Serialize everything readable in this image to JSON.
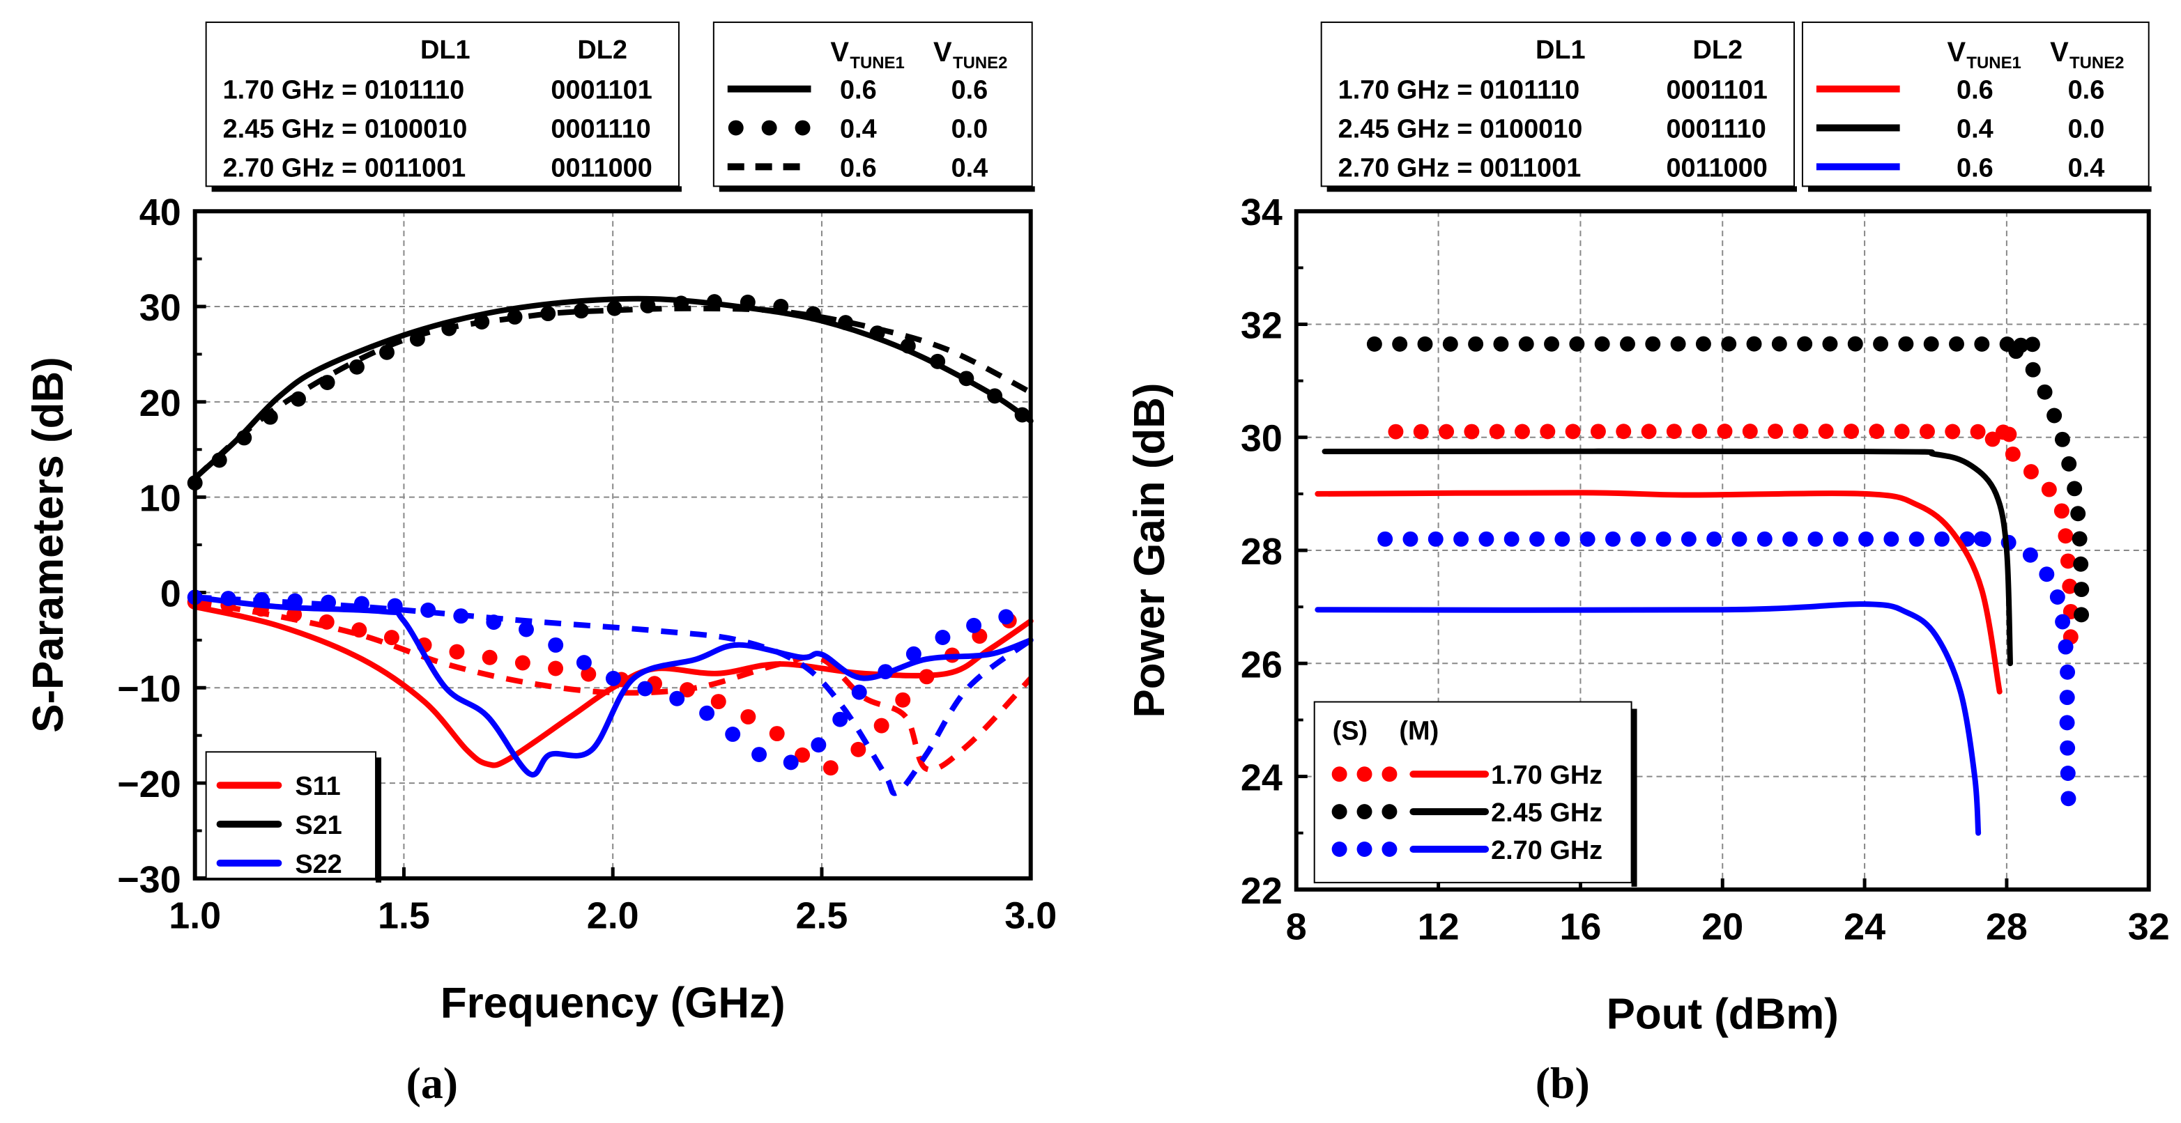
{
  "colors": {
    "S11": "#ff0000",
    "S21": "#000000",
    "S22": "#0000ff",
    "f170": "#ff0000",
    "f245": "#000000",
    "f270": "#0000ff",
    "grid": "#888888"
  },
  "chart_data": [
    {
      "type": "line",
      "caption": "(a)",
      "xlabel": "Frequency (GHz)",
      "ylabel": "S-Parameters (dB)",
      "xlim": [
        1.0,
        3.0
      ],
      "ylim": [
        -30,
        40
      ],
      "xticks": [
        1.0,
        1.5,
        2.0,
        2.5,
        3.0
      ],
      "xtick_labels": [
        "1.0",
        "1.5",
        "2.0",
        "2.5",
        "3.0"
      ],
      "yticks": [
        40,
        30,
        20,
        10,
        0,
        -10,
        -20,
        -30
      ],
      "ytick_labels": [
        "40",
        "30",
        "20",
        "10",
        "0",
        "−10",
        "−20",
        "−30"
      ],
      "grid": true,
      "legend": {
        "placement": "bottom-left",
        "entries": [
          "S11",
          "S21",
          "S22"
        ]
      },
      "state_table": {
        "headers": [
          "",
          "DL1",
          "DL2"
        ],
        "rows": [
          [
            "1.70 GHz = 0101110",
            "0001101"
          ],
          [
            "2.45 GHz = 0100010",
            "0001110"
          ],
          [
            "2.70 GHz = 0011001",
            "0011000"
          ]
        ]
      },
      "vtune_table": {
        "headers": [
          "V",
          "TUNE1",
          "V",
          "TUNE2"
        ],
        "rows": [
          {
            "style": "solid",
            "v1": "0.6",
            "v2": "0.6"
          },
          {
            "style": "dotted",
            "v1": "0.4",
            "v2": "0.0"
          },
          {
            "style": "dashed",
            "v1": "0.6",
            "v2": "0.4"
          }
        ]
      },
      "series": [
        {
          "name": "S21",
          "style": "solid",
          "color": "S21",
          "x": [
            1.0,
            1.1,
            1.2,
            1.3,
            1.5,
            1.7,
            1.9,
            2.1,
            2.3,
            2.5,
            2.7,
            2.9,
            3.0
          ],
          "y": [
            12,
            16,
            20.5,
            23.5,
            27,
            29.3,
            30.5,
            30.8,
            30,
            28.5,
            25.5,
            21,
            18
          ]
        },
        {
          "name": "S21",
          "style": "dotted",
          "color": "S21",
          "x": [
            1.0,
            1.2,
            1.5,
            1.7,
            2.0,
            2.3,
            2.5,
            2.7,
            2.9,
            3.0
          ],
          "y": [
            11.5,
            19,
            26,
            28.5,
            29.8,
            30.5,
            29,
            26,
            21,
            18
          ]
        },
        {
          "name": "S21",
          "style": "dashed",
          "color": "S21",
          "x": [
            1.0,
            1.2,
            1.5,
            1.8,
            2.0,
            2.2,
            2.4,
            2.6,
            2.8,
            3.0
          ],
          "y": [
            12,
            19.5,
            26.5,
            29,
            29.6,
            29.8,
            29.5,
            28,
            25.5,
            21
          ]
        },
        {
          "name": "S11",
          "style": "solid",
          "color": "S11",
          "x": [
            1.0,
            1.2,
            1.4,
            1.55,
            1.65,
            1.7,
            1.75,
            1.9,
            2.0,
            2.1,
            2.25,
            2.4,
            2.6,
            2.8,
            2.9,
            3.0
          ],
          "y": [
            -1.5,
            -3.5,
            -7,
            -11.5,
            -16.5,
            -18,
            -17.5,
            -13,
            -10,
            -8,
            -8.5,
            -7.5,
            -8.5,
            -8.5,
            -6,
            -3
          ]
        },
        {
          "name": "S11",
          "style": "dotted",
          "color": "S11",
          "x": [
            1.0,
            1.2,
            1.4,
            1.6,
            1.8,
            2.0,
            2.2,
            2.4,
            2.5,
            2.6,
            2.7,
            2.8,
            2.9,
            3.0
          ],
          "y": [
            -1,
            -2,
            -4,
            -6,
            -7.5,
            -9,
            -10.5,
            -15,
            -18.5,
            -16,
            -11,
            -7,
            -4,
            -2
          ]
        },
        {
          "name": "S11",
          "style": "dashed",
          "color": "S11",
          "x": [
            1.0,
            1.2,
            1.4,
            1.6,
            1.8,
            2.0,
            2.2,
            2.4,
            2.5,
            2.6,
            2.7,
            2.75,
            2.85,
            3.0
          ],
          "y": [
            -1,
            -2.5,
            -4.5,
            -7.5,
            -9.5,
            -10.5,
            -10,
            -7.5,
            -7,
            -11,
            -13,
            -18.5,
            -16,
            -9
          ]
        },
        {
          "name": "S22",
          "style": "solid",
          "color": "S22",
          "x": [
            1.0,
            1.2,
            1.45,
            1.5,
            1.6,
            1.7,
            1.8,
            1.85,
            1.95,
            2.05,
            2.2,
            2.3,
            2.45,
            2.5,
            2.6,
            2.75,
            2.9,
            3.0
          ],
          "y": [
            -0.5,
            -1.5,
            -2,
            -3,
            -10,
            -13,
            -19,
            -17,
            -16.5,
            -9,
            -7,
            -5.5,
            -6.8,
            -6.5,
            -9,
            -7,
            -6.5,
            -5
          ]
        },
        {
          "name": "S22",
          "style": "dotted",
          "color": "S22",
          "x": [
            1.0,
            1.3,
            1.5,
            1.7,
            1.8,
            1.9,
            2.0,
            2.2,
            2.35,
            2.45,
            2.55,
            2.6,
            2.7,
            2.8,
            2.9,
            3.0
          ],
          "y": [
            -0.5,
            -1,
            -1.5,
            -3,
            -4,
            -6.5,
            -9,
            -12,
            -17,
            -17.5,
            -13,
            -10,
            -7,
            -4.5,
            -3,
            -2
          ]
        },
        {
          "name": "S22",
          "style": "dashed",
          "color": "S22",
          "x": [
            1.0,
            1.4,
            1.8,
            2.1,
            2.3,
            2.45,
            2.55,
            2.65,
            2.68,
            2.75,
            2.85,
            3.0
          ],
          "y": [
            -0.5,
            -1.5,
            -3,
            -4,
            -5,
            -7.5,
            -12,
            -19,
            -21,
            -17,
            -10,
            -5
          ]
        }
      ]
    },
    {
      "type": "line",
      "caption": "(b)",
      "xlabel": "Pout (dBm)",
      "ylabel": "Power Gain (dB)",
      "xlim": [
        8,
        32
      ],
      "ylim": [
        22,
        34
      ],
      "xticks": [
        8,
        12,
        16,
        20,
        24,
        28,
        32
      ],
      "xtick_labels": [
        "8",
        "12",
        "16",
        "20",
        "24",
        "28",
        "32"
      ],
      "yticks": [
        34,
        32,
        30,
        28,
        26,
        24,
        22
      ],
      "ytick_labels": [
        "34",
        "32",
        "30",
        "28",
        "26",
        "24",
        "22"
      ],
      "grid": true,
      "legend": {
        "placement": "bottom-left",
        "headers": [
          "(S)",
          "(M)"
        ],
        "entries": [
          "1.70 GHz",
          "2.45 GHz",
          "2.70 GHz"
        ]
      },
      "state_table": {
        "headers": [
          "",
          "DL1",
          "DL2"
        ],
        "rows": [
          [
            "1.70 GHz = 0101110",
            "0001101"
          ],
          [
            "2.45 GHz = 0100010",
            "0001110"
          ],
          [
            "2.70 GHz = 0011001",
            "0011000"
          ]
        ]
      },
      "vtune_table": {
        "headers": [
          "V",
          "TUNE1",
          "V",
          "TUNE2"
        ],
        "rows": [
          {
            "style": "solid",
            "color": "f170",
            "v1": "0.6",
            "v2": "0.6"
          },
          {
            "style": "solid",
            "color": "f245",
            "v1": "0.4",
            "v2": "0.0"
          },
          {
            "style": "solid",
            "color": "f270",
            "v1": "0.6",
            "v2": "0.4"
          }
        ]
      },
      "series": [
        {
          "name": "1.70 GHz (S)",
          "style": "dots",
          "color": "f170",
          "x": [
            10.8,
            27,
            27.5,
            28,
            28.5,
            29,
            29.5,
            29.7,
            29.8,
            29.8
          ],
          "y": [
            30.1,
            30.1,
            30,
            29.8,
            29.5,
            29.2,
            28.8,
            28,
            27,
            26.3
          ]
        },
        {
          "name": "2.45 GHz (S)",
          "style": "dots",
          "color": "f245",
          "x": [
            10.2,
            27.5,
            28,
            28.5,
            29,
            29.5,
            29.8,
            30,
            30.1,
            30.1
          ],
          "y": [
            31.65,
            31.65,
            31.6,
            31.4,
            30.9,
            30.1,
            29.4,
            28.7,
            27.5,
            26.7
          ]
        },
        {
          "name": "2.70 GHz (S)",
          "style": "dots",
          "color": "f270",
          "x": [
            10.5,
            26,
            27,
            28,
            28.7,
            29.2,
            29.5,
            29.7,
            29.7,
            29.75
          ],
          "y": [
            28.2,
            28.2,
            28.2,
            28.15,
            27.9,
            27.5,
            27,
            26,
            25,
            23.2
          ]
        },
        {
          "name": "1.70 GHz (M)",
          "style": "solid",
          "color": "f170",
          "x": [
            8.6,
            16,
            19,
            24,
            25.5,
            26.5,
            27.3,
            27.8
          ],
          "y": [
            29,
            29.02,
            28.98,
            29,
            28.8,
            28.3,
            27.3,
            25.5
          ]
        },
        {
          "name": "2.45 GHz (M)",
          "style": "solid",
          "color": "f245",
          "x": [
            8.8,
            24,
            26,
            27,
            27.7,
            28,
            28.1
          ],
          "y": [
            29.75,
            29.75,
            29.7,
            29.5,
            29,
            28,
            26
          ]
        },
        {
          "name": "2.70 GHz (M)",
          "style": "solid",
          "color": "f270",
          "x": [
            8.6,
            20,
            24,
            25.2,
            26,
            26.7,
            27.1,
            27.2
          ],
          "y": [
            26.95,
            26.95,
            27.05,
            26.9,
            26.5,
            25.5,
            24,
            23
          ]
        }
      ]
    }
  ]
}
